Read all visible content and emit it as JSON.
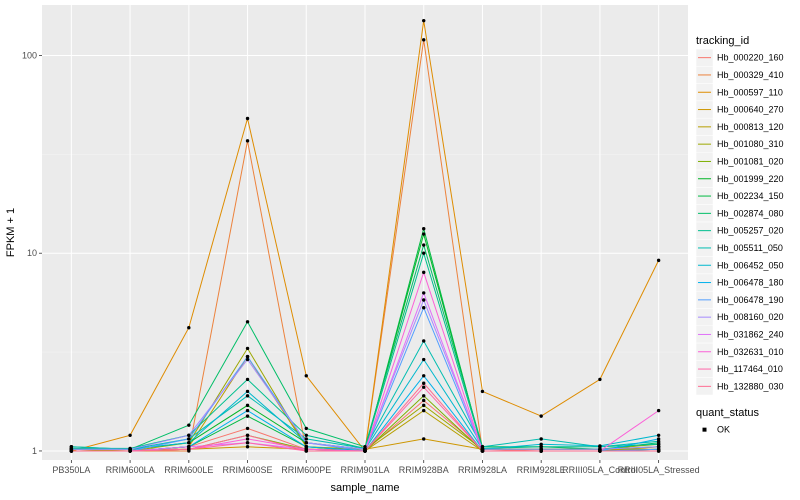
{
  "chart_data": {
    "type": "line",
    "xlabel": "sample_name",
    "ylabel": "FPKM + 1",
    "y_scale": "log10",
    "ylim": [
      0.9,
      180
    ],
    "y_ticks": [
      1,
      10,
      100
    ],
    "y_tick_labels": [
      "1",
      "10",
      "100"
    ],
    "grid": true,
    "legend_placement": "right",
    "categories": [
      "PB350LA",
      "RRIM600LA",
      "RRIM600LE",
      "RRIM600SE",
      "RRIM600PE",
      "RRIM901LA",
      "RRIM928BA",
      "RRIM928LA",
      "RRIM928LE",
      "RRIII05LA_Control",
      "RRIII05LA_Stressed"
    ],
    "legend_title": "tracking_id",
    "series": [
      {
        "name": "Hb_000220_160",
        "color": "#F8766D",
        "values": [
          1.02,
          1.0,
          1.05,
          1.3,
          1.02,
          1.0,
          1.8,
          1.02,
          1.0,
          1.0,
          1.05
        ]
      },
      {
        "name": "Hb_000329_410",
        "color": "#EC823C",
        "values": [
          1.0,
          1.0,
          1.0,
          37.0,
          1.0,
          1.0,
          120.0,
          1.0,
          1.0,
          1.0,
          1.0
        ]
      },
      {
        "name": "Hb_000597_110",
        "color": "#DE8C00",
        "values": [
          1.0,
          1.2,
          4.2,
          48.0,
          2.4,
          1.0,
          150.0,
          2.0,
          1.5,
          2.3,
          9.2
        ]
      },
      {
        "name": "Hb_000640_270",
        "color": "#CD9600",
        "values": [
          1.03,
          1.02,
          1.02,
          1.05,
          1.02,
          1.02,
          1.15,
          1.02,
          1.02,
          1.02,
          1.02
        ]
      },
      {
        "name": "Hb_000813_120",
        "color": "#B79F00",
        "values": [
          1.0,
          1.0,
          1.05,
          3.0,
          1.05,
          1.0,
          1.6,
          1.0,
          1.0,
          1.0,
          1.05
        ]
      },
      {
        "name": "Hb_001080_310",
        "color": "#9CA700",
        "values": [
          1.02,
          1.0,
          1.1,
          3.3,
          1.05,
          1.02,
          1.7,
          1.02,
          1.02,
          1.02,
          1.08
        ]
      },
      {
        "name": "Hb_001081_020",
        "color": "#7CAE00",
        "values": [
          1.0,
          1.0,
          1.02,
          1.2,
          1.02,
          1.0,
          1.9,
          1.0,
          1.0,
          1.0,
          1.0
        ]
      },
      {
        "name": "Hb_001999_220",
        "color": "#00B526",
        "values": [
          1.02,
          1.02,
          1.1,
          1.7,
          1.1,
          1.02,
          12.5,
          1.02,
          1.02,
          1.02,
          1.05
        ]
      },
      {
        "name": "Hb_002234_150",
        "color": "#00BA42",
        "values": [
          1.0,
          1.0,
          1.05,
          1.5,
          1.05,
          1.0,
          13.3,
          1.0,
          1.0,
          1.0,
          1.02
        ]
      },
      {
        "name": "Hb_002874_080",
        "color": "#00BE67",
        "values": [
          1.05,
          1.02,
          1.35,
          4.5,
          1.3,
          1.05,
          11.0,
          1.05,
          1.05,
          1.02,
          1.1
        ]
      },
      {
        "name": "Hb_005257_020",
        "color": "#00BF8E",
        "values": [
          1.03,
          1.03,
          1.2,
          2.3,
          1.2,
          1.03,
          10.0,
          1.03,
          1.05,
          1.05,
          1.08
        ]
      },
      {
        "name": "Hb_005511_050",
        "color": "#00BDB0",
        "values": [
          1.05,
          1.02,
          1.15,
          1.9,
          1.15,
          1.03,
          3.6,
          1.05,
          1.15,
          1.05,
          1.12
        ]
      },
      {
        "name": "Hb_006452_050",
        "color": "#00B8CE",
        "values": [
          1.02,
          1.02,
          1.1,
          2.0,
          1.1,
          1.02,
          2.9,
          1.02,
          1.08,
          1.06,
          1.2
        ]
      },
      {
        "name": "Hb_006478_180",
        "color": "#00B0EB",
        "values": [
          1.0,
          1.0,
          1.05,
          1.6,
          1.05,
          1.0,
          2.4,
          1.0,
          1.0,
          1.0,
          1.15
        ]
      },
      {
        "name": "Hb_006478_190",
        "color": "#529EFF",
        "values": [
          1.0,
          1.0,
          1.15,
          3.0,
          1.1,
          1.0,
          5.3,
          1.0,
          1.0,
          1.0,
          1.02
        ]
      },
      {
        "name": "Hb_008160_020",
        "color": "#A58AFF",
        "values": [
          1.02,
          1.02,
          1.2,
          2.9,
          1.1,
          1.02,
          5.8,
          1.02,
          1.02,
          1.02,
          1.05
        ]
      },
      {
        "name": "Hb_031862_240",
        "color": "#DF70F8",
        "values": [
          1.0,
          1.0,
          1.05,
          1.1,
          1.02,
          1.0,
          6.3,
          1.0,
          1.0,
          1.0,
          1.0
        ]
      },
      {
        "name": "Hb_032631_010",
        "color": "#FB61D7",
        "values": [
          1.0,
          1.0,
          1.02,
          1.15,
          1.02,
          1.0,
          8.0,
          1.0,
          1.0,
          1.0,
          1.6
        ]
      },
      {
        "name": "Hb_117464_010",
        "color": "#FF66A8",
        "values": [
          1.0,
          1.0,
          1.02,
          1.1,
          1.0,
          1.0,
          2.1,
          1.0,
          1.0,
          1.0,
          1.0
        ]
      },
      {
        "name": "Hb_132880_030",
        "color": "#FF6C91",
        "values": [
          1.0,
          1.0,
          1.02,
          1.2,
          1.0,
          1.0,
          2.2,
          1.0,
          1.0,
          1.0,
          1.0
        ]
      }
    ],
    "point_legend_title": "quant_status",
    "point_legend_items": [
      "OK"
    ]
  },
  "colors": {
    "panel_background": "#EBEBEB",
    "grid_major": "#FFFFFF",
    "grid_minor": "#F5F5F5",
    "legend_key_background": "#F2F2F2",
    "point": "#000000"
  }
}
